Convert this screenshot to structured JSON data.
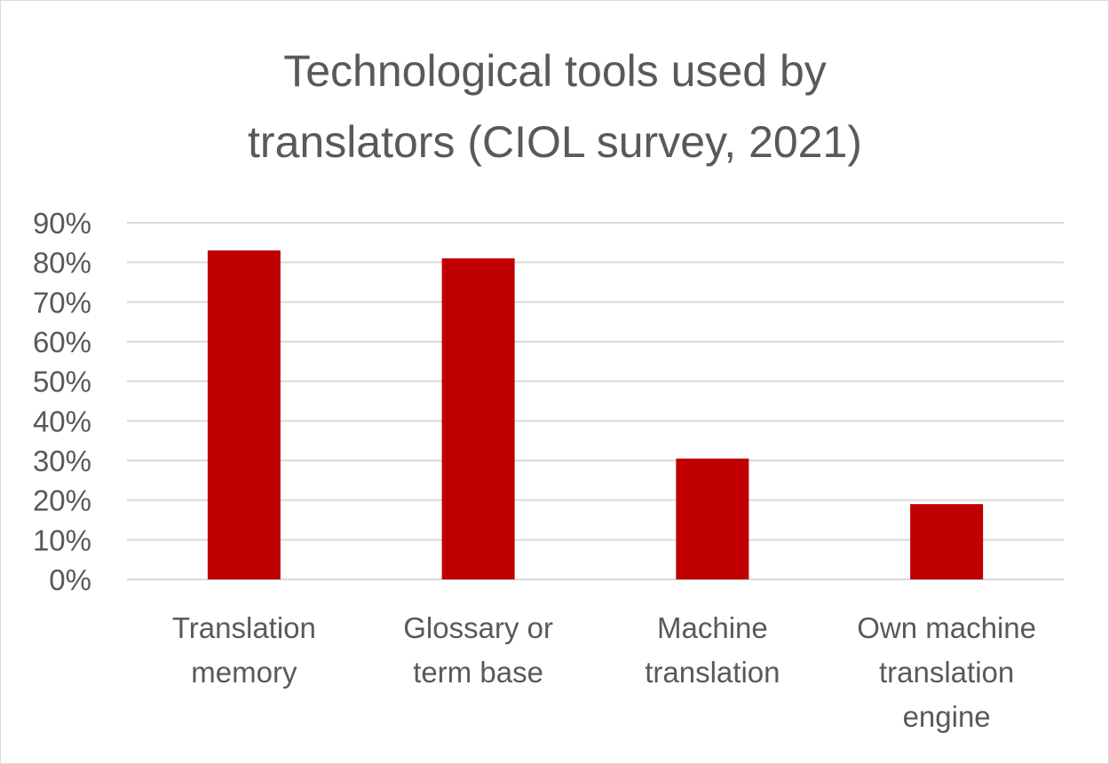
{
  "chart_data": {
    "type": "bar",
    "title_lines": [
      "Technological tools used by",
      "translators (CIOL survey, 2021)"
    ],
    "categories": [
      [
        "Translation",
        "memory"
      ],
      [
        "Glossary or",
        "term base"
      ],
      [
        "Machine",
        "translation"
      ],
      [
        "Own machine",
        "translation",
        "engine"
      ]
    ],
    "values": [
      83,
      81,
      30.5,
      19
    ],
    "ylim": [
      0,
      90
    ],
    "yticks": [
      "0%",
      "10%",
      "20%",
      "30%",
      "40%",
      "50%",
      "60%",
      "70%",
      "80%",
      "90%"
    ],
    "grid": true,
    "legend": "none",
    "bar_color": "#c00000"
  }
}
